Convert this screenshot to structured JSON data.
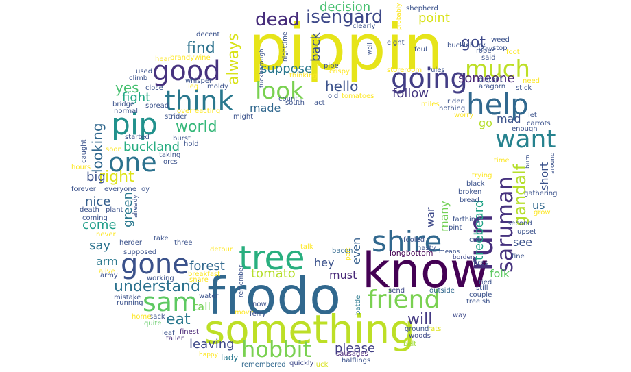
{
  "words": [
    {
      "text": "pippin",
      "color": "#e6e419"
    },
    {
      "text": "frodo",
      "color": "#31688e"
    },
    {
      "text": "know",
      "color": "#440154"
    },
    {
      "text": "something",
      "color": "#bddf26"
    },
    {
      "text": "tree",
      "color": "#29af7f"
    },
    {
      "text": "shire",
      "color": "#31688e"
    },
    {
      "text": "run",
      "color": "#472d7b"
    },
    {
      "text": "good",
      "color": "#46327e"
    },
    {
      "text": "think",
      "color": "#2a788e"
    },
    {
      "text": "pip",
      "color": "#21918c"
    },
    {
      "text": "help",
      "color": "#31688e"
    },
    {
      "text": "going",
      "color": "#433e85"
    },
    {
      "text": "one",
      "color": "#2c728e"
    },
    {
      "text": "gone",
      "color": "#3b528b"
    },
    {
      "text": "sam",
      "color": "#5ec962"
    },
    {
      "text": "friend",
      "color": "#7ad151"
    },
    {
      "text": "hobbit",
      "color": "#7ad151"
    },
    {
      "text": "saruman",
      "color": "#46327e"
    },
    {
      "text": "want",
      "color": "#26828e"
    },
    {
      "text": "look",
      "color": "#7ad151"
    },
    {
      "text": "much",
      "color": "#bddf26"
    },
    {
      "text": "isengard",
      "color": "#3e4989"
    },
    {
      "text": "dead",
      "color": "#472d7b"
    },
    {
      "text": "gandalf",
      "color": "#b5de2b"
    },
    {
      "text": "understand",
      "color": "#2c728e"
    },
    {
      "text": "will",
      "color": "#443983"
    },
    {
      "text": "world",
      "color": "#35b779"
    },
    {
      "text": "buckland",
      "color": "#27ad81"
    },
    {
      "text": "eat",
      "color": "#2a788e"
    },
    {
      "text": "leaving",
      "color": "#3e4989"
    },
    {
      "text": "please",
      "color": "#424086"
    },
    {
      "text": "forest",
      "color": "#31688e"
    },
    {
      "text": "tomato",
      "color": "#b5de2b"
    },
    {
      "text": "always",
      "color": "#d8e219"
    },
    {
      "text": "find",
      "color": "#2c728e"
    },
    {
      "text": "yes",
      "color": "#46c06f"
    },
    {
      "text": "fight",
      "color": "#22a884"
    },
    {
      "text": "got",
      "color": "#3e4989"
    },
    {
      "text": "suppose",
      "color": "#2a788e"
    },
    {
      "text": "hello",
      "color": "#3b528b"
    },
    {
      "text": "follow",
      "color": "#453781"
    },
    {
      "text": "someone",
      "color": "#482475"
    },
    {
      "text": "decision",
      "color": "#46c06f"
    },
    {
      "text": "point",
      "color": "#d8e219"
    },
    {
      "text": "treebeard",
      "color": "#20a386"
    },
    {
      "text": "right",
      "color": "#dde318"
    },
    {
      "text": "looking",
      "color": "#31688e"
    },
    {
      "text": "big",
      "color": "#3b528b"
    },
    {
      "text": "nice",
      "color": "#355f8d"
    },
    {
      "text": "come",
      "color": "#1f9e89"
    },
    {
      "text": "say",
      "color": "#2c728e"
    },
    {
      "text": "arm",
      "color": "#2a788e"
    },
    {
      "text": "green",
      "color": "#2a788e"
    },
    {
      "text": "back",
      "color": "#3b528b"
    },
    {
      "text": "made",
      "color": "#31688e"
    },
    {
      "text": "mad",
      "color": "#3b528b"
    },
    {
      "text": "go",
      "color": "#b5de2b"
    },
    {
      "text": "short",
      "color": "#3b528b"
    },
    {
      "text": "us",
      "color": "#31688e"
    },
    {
      "text": "see",
      "color": "#3b528b"
    },
    {
      "text": "folk",
      "color": "#5ec962"
    },
    {
      "text": "hey",
      "color": "#3b528b"
    },
    {
      "text": "must",
      "color": "#482878"
    },
    {
      "text": "even",
      "color": "#355f8d"
    },
    {
      "text": "many",
      "color": "#73d056"
    },
    {
      "text": "war",
      "color": "#3e4989"
    },
    {
      "text": "tall",
      "color": "#73d056"
    },
    {
      "text": "lady",
      "color": "#2a788e"
    },
    {
      "text": "longbottom",
      "color": "#440154"
    },
    {
      "text": "battle",
      "color": "#2a788e"
    },
    {
      "text": "leaf",
      "color": "#3b528b"
    },
    {
      "text": "finest",
      "color": "#482475"
    },
    {
      "text": "taller",
      "color": "#46327e"
    },
    {
      "text": "sack",
      "color": "#3b528b"
    },
    {
      "text": "quite",
      "color": "#5ec962"
    },
    {
      "text": "home",
      "color": "#fde725"
    },
    {
      "text": "happy",
      "color": "#fde725"
    },
    {
      "text": "remembered",
      "color": "#31688e"
    },
    {
      "text": "quickly",
      "color": "#3e4989"
    },
    {
      "text": "luck",
      "color": "#d8e219"
    },
    {
      "text": "halflings",
      "color": "#3b528b"
    },
    {
      "text": "sausages",
      "color": "#482878"
    },
    {
      "text": "belt",
      "color": "#a0da39"
    },
    {
      "text": "woods",
      "color": "#3e4989"
    },
    {
      "text": "ground",
      "color": "#3b528b"
    },
    {
      "text": "rats",
      "color": "#dde318"
    },
    {
      "text": "send",
      "color": "#3e4989"
    },
    {
      "text": "outside",
      "color": "#31688e"
    },
    {
      "text": "way",
      "color": "#3e4989"
    },
    {
      "text": "couple",
      "color": "#3b528b"
    },
    {
      "text": "treeish",
      "color": "#3b528b"
    },
    {
      "text": "tied",
      "color": "#3b528b"
    },
    {
      "text": "still",
      "color": "#3b528b"
    },
    {
      "text": "fires",
      "color": "#3b528b"
    },
    {
      "text": "borders",
      "color": "#3e4989"
    },
    {
      "text": "fine",
      "color": "#3b528b"
    },
    {
      "text": "means",
      "color": "#3b528b"
    },
    {
      "text": "bacon",
      "color": "#31688e"
    },
    {
      "text": "part",
      "color": "#fde725"
    },
    {
      "text": "talk",
      "color": "#fde725"
    },
    {
      "text": "detour",
      "color": "#fde725"
    },
    {
      "text": "move",
      "color": "#fde725"
    },
    {
      "text": "ferry",
      "color": "#3b528b"
    },
    {
      "text": "now",
      "color": "#3b528b"
    },
    {
      "text": "remember",
      "color": "#3b528b"
    },
    {
      "text": "water",
      "color": "#3b528b"
    },
    {
      "text": "snare",
      "color": "#fde725"
    },
    {
      "text": "breakfast",
      "color": "#fde725"
    },
    {
      "text": "working",
      "color": "#3b528b"
    },
    {
      "text": "mistake",
      "color": "#3b528b"
    },
    {
      "text": "running",
      "color": "#3b528b"
    },
    {
      "text": "army",
      "color": "#3b528b"
    },
    {
      "text": "alive",
      "color": "#fde725"
    },
    {
      "text": "supposed",
      "color": "#3b528b"
    },
    {
      "text": "herder",
      "color": "#3b528b"
    },
    {
      "text": "three",
      "color": "#3b528b"
    },
    {
      "text": "take",
      "color": "#3b528b"
    },
    {
      "text": "never",
      "color": "#fde725"
    },
    {
      "text": "coming",
      "color": "#3b528b"
    },
    {
      "text": "death",
      "color": "#3b528b"
    },
    {
      "text": "plant",
      "color": "#3b528b"
    },
    {
      "text": "already",
      "color": "#3b528b"
    },
    {
      "text": "forever",
      "color": "#3b528b"
    },
    {
      "text": "everyone",
      "color": "#3b528b"
    },
    {
      "text": "oy",
      "color": "#3b528b"
    },
    {
      "text": "hours",
      "color": "#fde725"
    },
    {
      "text": "caught",
      "color": "#3b528b"
    },
    {
      "text": "soon",
      "color": "#fde725"
    },
    {
      "text": "started",
      "color": "#3b528b"
    },
    {
      "text": "taking",
      "color": "#3b528b"
    },
    {
      "text": "orcs",
      "color": "#3b528b"
    },
    {
      "text": "burst",
      "color": "#3b528b"
    },
    {
      "text": "hold",
      "color": "#3b528b"
    },
    {
      "text": "strider",
      "color": "#3b528b"
    },
    {
      "text": "overreacting",
      "color": "#fde725"
    },
    {
      "text": "might",
      "color": "#3b528b"
    },
    {
      "text": "normal",
      "color": "#3b528b"
    },
    {
      "text": "bridge",
      "color": "#3b528b"
    },
    {
      "text": "spread",
      "color": "#3b528b"
    },
    {
      "text": "climb",
      "color": "#3b528b"
    },
    {
      "text": "close",
      "color": "#3b528b"
    },
    {
      "text": "used",
      "color": "#3b528b"
    },
    {
      "text": "leg",
      "color": "#fde725"
    },
    {
      "text": "moldy",
      "color": "#3b528b"
    },
    {
      "text": "whisper",
      "color": "#3b528b"
    },
    {
      "text": "hear",
      "color": "#fde725"
    },
    {
      "text": "brandywine",
      "color": "#fde725"
    },
    {
      "text": "decent",
      "color": "#3b528b"
    },
    {
      "text": "tuckborough",
      "color": "#3b528b"
    },
    {
      "text": "nighttime",
      "color": "#3b528b"
    },
    {
      "text": "count",
      "color": "#3b528b"
    },
    {
      "text": "thinking",
      "color": "#fde725"
    },
    {
      "text": "south",
      "color": "#3b528b"
    },
    {
      "text": "act",
      "color": "#3b528b"
    },
    {
      "text": "old",
      "color": "#3b528b"
    },
    {
      "text": "tomatoes",
      "color": "#fde725"
    },
    {
      "text": "crispy",
      "color": "#fde725"
    },
    {
      "text": "pipe",
      "color": "#3b528b"
    },
    {
      "text": "clearly",
      "color": "#3b528b"
    },
    {
      "text": "well",
      "color": "#3b528b"
    },
    {
      "text": "eight",
      "color": "#3b528b"
    },
    {
      "text": "storeroom",
      "color": "#fde725"
    },
    {
      "text": "rules",
      "color": "#3b528b"
    },
    {
      "text": "foul",
      "color": "#3b528b"
    },
    {
      "text": "probably",
      "color": "#fde725"
    },
    {
      "text": "shepherd",
      "color": "#3b528b"
    },
    {
      "text": "bucklebury",
      "color": "#3b528b"
    },
    {
      "text": "view",
      "color": "#3b528b"
    },
    {
      "text": "weed",
      "color": "#3b528b"
    },
    {
      "text": "stop",
      "color": "#3b528b"
    },
    {
      "text": "foot",
      "color": "#fde725"
    },
    {
      "text": "rope",
      "color": "#3b528b"
    },
    {
      "text": "said",
      "color": "#3b528b"
    },
    {
      "text": "aragorn",
      "color": "#3b528b"
    },
    {
      "text": "distant",
      "color": "#3b528b"
    },
    {
      "text": "need",
      "color": "#fde725"
    },
    {
      "text": "stick",
      "color": "#3b528b"
    },
    {
      "text": "rider",
      "color": "#3b528b"
    },
    {
      "text": "miles",
      "color": "#fde725"
    },
    {
      "text": "nothing",
      "color": "#3b528b"
    },
    {
      "text": "worry",
      "color": "#fde725"
    },
    {
      "text": "let",
      "color": "#3b528b"
    },
    {
      "text": "carrots",
      "color": "#3b528b"
    },
    {
      "text": "enough",
      "color": "#3b528b"
    },
    {
      "text": "time",
      "color": "#fde725"
    },
    {
      "text": "burn",
      "color": "#3b528b"
    },
    {
      "text": "around",
      "color": "#3b528b"
    },
    {
      "text": "trying",
      "color": "#fde725"
    },
    {
      "text": "black",
      "color": "#3b528b"
    },
    {
      "text": "broken",
      "color": "#3b528b"
    },
    {
      "text": "bread",
      "color": "#3b528b"
    },
    {
      "text": "gathering",
      "color": "#3b528b"
    },
    {
      "text": "grow",
      "color": "#fde725"
    },
    {
      "text": "second",
      "color": "#3b528b"
    },
    {
      "text": "upset",
      "color": "#3b528b"
    },
    {
      "text": "farthing",
      "color": "#3b528b"
    },
    {
      "text": "pint",
      "color": "#3b528b"
    },
    {
      "text": "cut",
      "color": "#3b528b"
    },
    {
      "text": "hasty",
      "color": "#3b528b"
    },
    {
      "text": "fooled",
      "color": "#3b528b"
    }
  ]
}
